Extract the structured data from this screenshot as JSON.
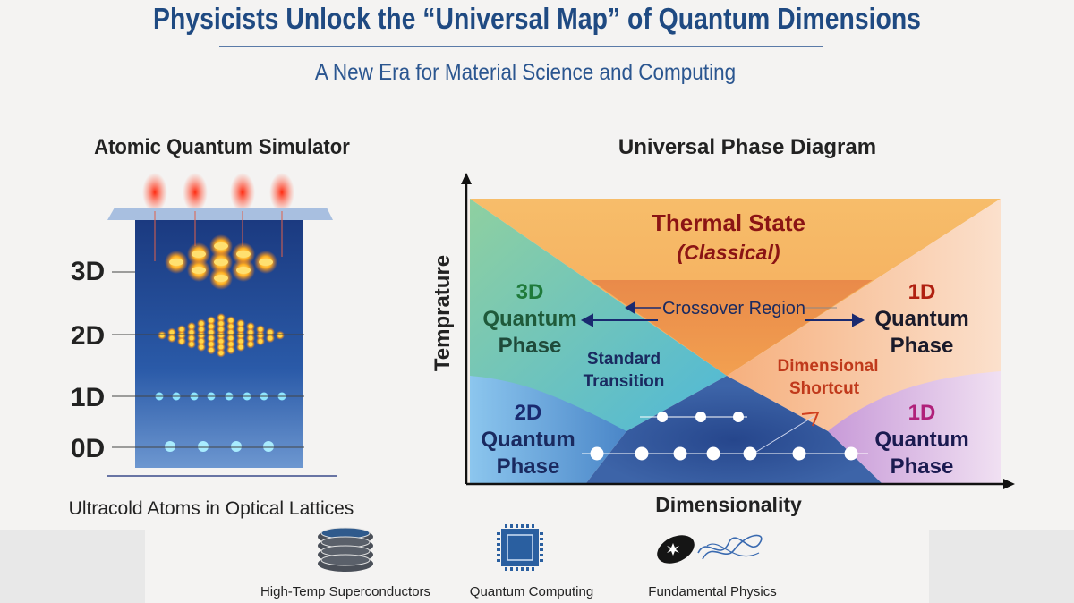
{
  "header": {
    "title": "Physicists Unlock the “Universal Map” of Quantum Dimensions",
    "subtitle": "A New Era for Material Science and Computing"
  },
  "simulator": {
    "heading": "Atomic Quantum Simulator",
    "levels": [
      "3D",
      "2D",
      "1D",
      "0D"
    ],
    "caption": "Ultracold Atoms in Optical Lattices"
  },
  "phase_diagram": {
    "heading": "Universal Phase Diagram",
    "y_axis_label": "Temprature",
    "x_axis_label": "Dimensionality",
    "thermal": {
      "line1": "Thermal State",
      "line2": "(Classical)"
    },
    "crossover": "Crossover Region",
    "phase_3d": [
      "3D",
      "Quantum",
      "Phase"
    ],
    "phase_1d_upper": [
      "1D",
      "Quantum",
      "Phase"
    ],
    "phase_2d": [
      "2D",
      "Quantum",
      "Phase"
    ],
    "phase_1d_lower": [
      "1D",
      "Quantum",
      "Phase"
    ],
    "standard_transition": [
      "Standard",
      "Transition"
    ],
    "dimensional_shortcut": [
      "Dimensional",
      "Shortcut"
    ],
    "colors": {
      "thermal": "#f5b560",
      "crossover": "#ef9a4e",
      "phase_3d": "#7cc6a0",
      "phase_2d": "#6fb0e0",
      "center": "#2a4a8f",
      "phase_1d_upper": "#f8c6a0",
      "phase_1d_lower": "#d2a8dc"
    }
  },
  "applications": [
    {
      "label": "High-Temp Superconductors",
      "icon": "superconductor-stack-icon"
    },
    {
      "label": "Quantum Computing",
      "icon": "chip-icon"
    },
    {
      "label": "Fundamental Physics",
      "icon": "black-hole-string-icon"
    }
  ]
}
